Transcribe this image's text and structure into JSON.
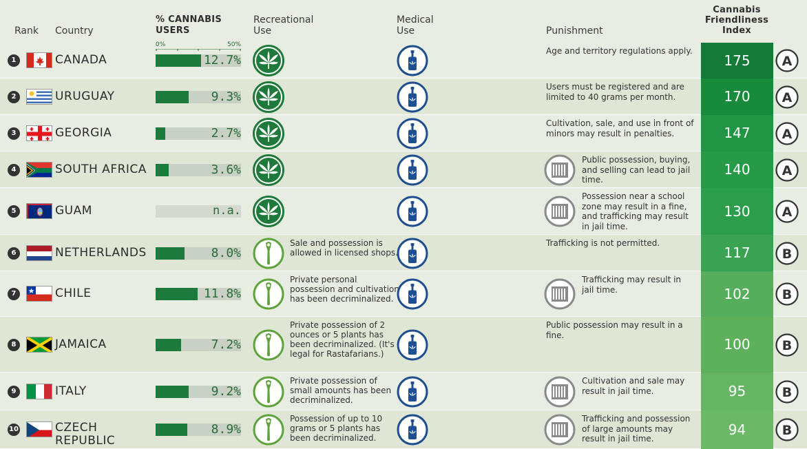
{
  "headers": {
    "rank": "Rank",
    "country": "Country",
    "users_line1": "% CANNABIS",
    "users_line2": "USERS",
    "recreational_line1": "Recreational",
    "recreational_line2": "Use",
    "medical_line1": "Medical",
    "medical_line2": "Use",
    "punishment": "Punishment",
    "index_line1": "Cannabis",
    "index_line2": "Friendliness",
    "index_line3": "Index"
  },
  "scale": {
    "min_label": "0%",
    "max_label": "50%"
  },
  "colors": {
    "bar": "#1c7a3c",
    "rec_legal": "#1e7a3a",
    "rec_decrim": "#5fa33d",
    "medical": "#1f4f8f",
    "jail": "#8a8a8a"
  },
  "rows": [
    {
      "rank": "1",
      "country": "CANADA",
      "users_pct": 12.7,
      "users_label": "12.7%",
      "recreational": "legal",
      "rec_text": "",
      "medical": true,
      "punishment": "Age and territory regulations apply.",
      "jail": false,
      "index": "175",
      "grade": "A",
      "index_color": "#137a38"
    },
    {
      "rank": "2",
      "country": "URUGUAY",
      "users_pct": 9.3,
      "users_label": "9.3%",
      "recreational": "legal",
      "rec_text": "",
      "medical": true,
      "punishment": "Users must be registered and are limited to 40 grams per month.",
      "jail": false,
      "index": "170",
      "grade": "A",
      "index_color": "#178a3c"
    },
    {
      "rank": "3",
      "country": "GEORGIA",
      "users_pct": 2.7,
      "users_label": "2.7%",
      "recreational": "legal",
      "rec_text": "",
      "medical": true,
      "punishment": "Cultivation, sale, and use in front of minors may result in penalties.",
      "jail": false,
      "index": "147",
      "grade": "A",
      "index_color": "#209543"
    },
    {
      "rank": "4",
      "country": "SOUTH AFRICA",
      "users_pct": 3.6,
      "users_label": "3.6%",
      "recreational": "legal",
      "rec_text": "",
      "medical": true,
      "punishment": "Public possession, buying, and selling can lead to jail time.",
      "jail": true,
      "index": "140",
      "grade": "A",
      "index_color": "#279a47"
    },
    {
      "rank": "5",
      "country": "GUAM",
      "users_pct": null,
      "users_label": "n.a.",
      "recreational": "legal",
      "rec_text": "",
      "medical": true,
      "punishment": "Possession near a school zone may result in a fine, and trafficking may result in jail time.",
      "jail": true,
      "index": "130",
      "grade": "A",
      "index_color": "#2c9d4a"
    },
    {
      "rank": "6",
      "country": "NETHERLANDS",
      "users_pct": 8.0,
      "users_label": "8.0%",
      "recreational": "decrim",
      "rec_text": "Sale and possession is allowed in licensed shops.",
      "medical": true,
      "punishment": "Trafficking is not permitted.",
      "jail": false,
      "index": "117",
      "grade": "B",
      "index_color": "#3aa352"
    },
    {
      "rank": "7",
      "country": "CHILE",
      "users_pct": 11.8,
      "users_label": "11.8%",
      "recreational": "decrim",
      "rec_text": "Private personal possession and cultivation has been decriminalized.",
      "medical": true,
      "punishment": "Trafficking may result in jail time.",
      "jail": true,
      "index": "102",
      "grade": "B",
      "index_color": "#56ad5b"
    },
    {
      "rank": "8",
      "country": "JAMAICA",
      "users_pct": 7.2,
      "users_label": "7.2%",
      "recreational": "decrim",
      "rec_text": "Private possession of 2 ounces or 5 plants has been decriminalized. (It's legal for Rastafarians.)",
      "medical": true,
      "punishment": "Public possession may result in a fine.",
      "jail": false,
      "index": "100",
      "grade": "B",
      "index_color": "#5db15d"
    },
    {
      "rank": "9",
      "country": "ITALY",
      "users_pct": 9.2,
      "users_label": "9.2%",
      "recreational": "decrim",
      "rec_text": "Private possession of small amounts has been decriminalized.",
      "medical": true,
      "punishment": "Cultivation and sale may result in jail time.",
      "jail": true,
      "index": "95",
      "grade": "B",
      "index_color": "#66b564"
    },
    {
      "rank": "10",
      "country": "CZECH REPUBLIC",
      "users_pct": 8.9,
      "users_label": "8.9%",
      "recreational": "decrim",
      "rec_text": "Possession of up to 10 grams or 5 plants has been decriminalized.",
      "medical": true,
      "punishment": "Trafficking and possession of large amounts may result in jail time.",
      "jail": true,
      "index": "94",
      "grade": "B",
      "index_color": "#6bb866"
    }
  ]
}
